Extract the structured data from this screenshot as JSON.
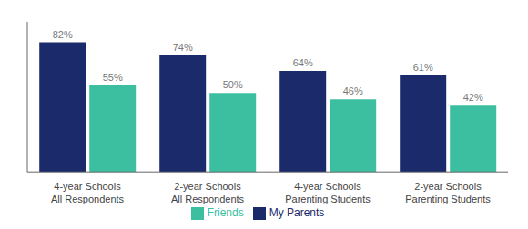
{
  "chart_data": {
    "type": "bar",
    "categories": [
      "4-year Schools\nAll Respondents",
      "2-year Schools\nAll Respondents",
      "4-year Schools\nParenting Students",
      "2-year Schools\nParenting Students"
    ],
    "series": [
      {
        "name": "My Parents",
        "color": "#1b2a6b",
        "values": [
          82,
          74,
          64,
          61
        ],
        "value_labels": [
          "82%",
          "74%",
          "64%",
          "61%"
        ]
      },
      {
        "name": "Friends",
        "color": "#3cbfa0",
        "values": [
          55,
          50,
          46,
          42
        ],
        "value_labels": [
          "55%",
          "50%",
          "46%",
          "42%"
        ]
      }
    ],
    "ylim": [
      0,
      95
    ],
    "tick_labels": "x",
    "data_labels": true,
    "legend": "bottom",
    "grid": false
  }
}
